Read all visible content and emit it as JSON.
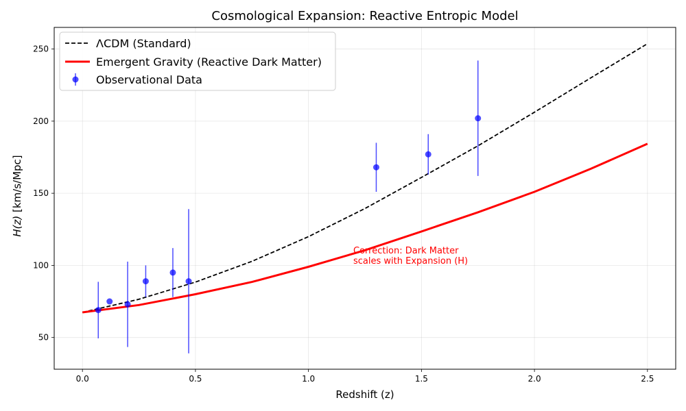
{
  "chart_data": {
    "type": "line",
    "title": "Cosmological Expansion: Reactive Entropic Model",
    "xlabel": "Redshift (z)",
    "ylabel_main": "H(z)",
    "ylabel_unit": " [km/s/Mpc]",
    "xlim": [
      -0.125,
      2.625
    ],
    "ylim": [
      28,
      265
    ],
    "xticks": [
      0.0,
      0.5,
      1.0,
      1.5,
      2.0,
      2.5
    ],
    "xtick_labels": [
      "0.0",
      "0.5",
      "1.0",
      "1.5",
      "2.0",
      "2.5"
    ],
    "yticks": [
      50,
      100,
      150,
      200,
      250
    ],
    "ytick_labels": [
      "50",
      "100",
      "150",
      "200",
      "250"
    ],
    "grid": true,
    "legend_placement": "top-left",
    "series": [
      {
        "name": "ΛCDM (Standard)",
        "style": "dashed",
        "color": "#000000",
        "x": [
          0.0,
          0.25,
          0.5,
          0.75,
          1.0,
          1.25,
          1.5,
          1.75,
          2.0,
          2.25,
          2.5
        ],
        "y": [
          67.4,
          76.5,
          88.4,
          102.8,
          119.9,
          139.4,
          161.0,
          182.9,
          206.2,
          230.1,
          253.7
        ]
      },
      {
        "name": "Emergent Gravity (Reactive Dark Matter)",
        "style": "solid",
        "color": "#ff0000",
        "x": [
          0.0,
          0.25,
          0.5,
          0.75,
          1.0,
          1.25,
          1.5,
          1.75,
          2.0,
          2.25,
          2.5
        ],
        "y": [
          67.4,
          72.5,
          80.0,
          88.5,
          99.0,
          110.5,
          123.5,
          136.8,
          151.0,
          167.0,
          184.3
        ]
      },
      {
        "name": "Observational Data",
        "style": "errorbar",
        "color": "#0000ff",
        "x": [
          0.07,
          0.12,
          0.2,
          0.28,
          0.4,
          0.47,
          1.3,
          1.53,
          1.75
        ],
        "y": [
          69,
          75,
          73,
          89,
          95,
          89,
          168,
          177,
          202
        ],
        "err": [
          19.6,
          0,
          29.6,
          11,
          17,
          50,
          17,
          14,
          40
        ]
      }
    ],
    "annotation": {
      "lines": [
        "Correction: Dark Matter",
        "scales with Expansion (H)"
      ],
      "x": 1.2,
      "y": 100
    }
  }
}
